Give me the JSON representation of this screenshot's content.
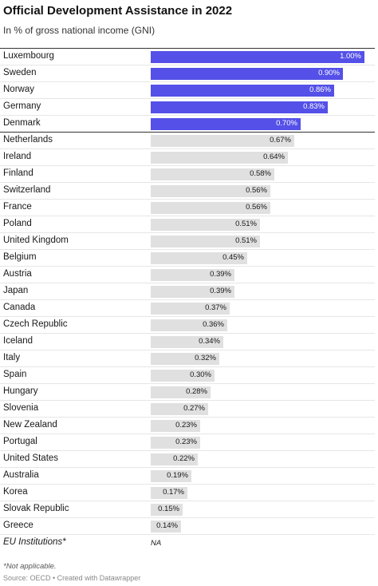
{
  "chart_data": {
    "type": "bar",
    "orientation": "horizontal",
    "title": "Official Development Assistance in 2022",
    "subtitle": "In % of gross national income (GNI)",
    "xlim": [
      0,
      1.0
    ],
    "categories": [
      "Luxembourg",
      "Sweden",
      "Norway",
      "Germany",
      "Denmark",
      "Netherlands",
      "Ireland",
      "Finland",
      "Switzerland",
      "France",
      "Poland",
      "United Kingdom",
      "Belgium",
      "Austria",
      "Japan",
      "Canada",
      "Czech Republic",
      "Iceland",
      "Italy",
      "Spain",
      "Hungary",
      "Slovenia",
      "New Zealand",
      "Portugal",
      "United States",
      "Australia",
      "Korea",
      "Slovak Republic",
      "Greece",
      "EU Institutions*"
    ],
    "values": [
      1.0,
      0.9,
      0.86,
      0.83,
      0.7,
      0.67,
      0.64,
      0.58,
      0.56,
      0.56,
      0.51,
      0.51,
      0.45,
      0.39,
      0.39,
      0.37,
      0.36,
      0.34,
      0.32,
      0.3,
      0.28,
      0.27,
      0.23,
      0.23,
      0.22,
      0.19,
      0.17,
      0.15,
      0.14,
      null
    ],
    "value_labels": [
      "1.00%",
      "0.90%",
      "0.86%",
      "0.83%",
      "0.70%",
      "0.67%",
      "0.64%",
      "0.58%",
      "0.56%",
      "0.56%",
      "0.51%",
      "0.51%",
      "0.45%",
      "0.39%",
      "0.39%",
      "0.37%",
      "0.36%",
      "0.34%",
      "0.32%",
      "0.30%",
      "0.28%",
      "0.27%",
      "0.23%",
      "0.23%",
      "0.22%",
      "0.19%",
      "0.17%",
      "0.15%",
      "0.14%",
      "NA"
    ],
    "highlighted_count": 5,
    "colors": {
      "highlight": "#5450e8",
      "default": "#e0e0e0",
      "highlight_text": "#ffffff",
      "default_text": "#181818"
    }
  },
  "footnote": "*Not applicable.",
  "source": "Source: OECD • Created with Datawrapper"
}
